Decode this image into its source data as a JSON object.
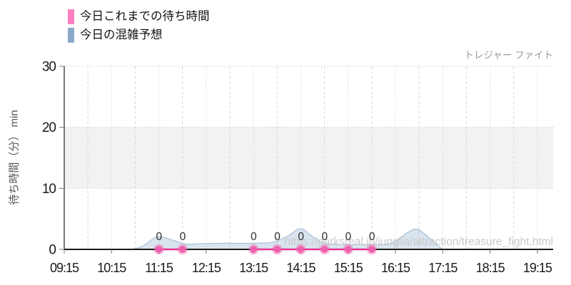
{
  "legend": {
    "items": [
      {
        "label": "今日これまでの待ち時間",
        "color": "#ff80c1"
      },
      {
        "label": "今日の混雑予想",
        "color": "#8aa9c9"
      }
    ]
  },
  "attraction_label": "トレジャー ファイト",
  "watermark": "https://parksreal.jp/junglia/attraction/treasure_fight.html",
  "chart_data": {
    "type": "line",
    "title": "",
    "xlabel": "",
    "ylabel": "待ち時間（分） min",
    "ylim": [
      0,
      30
    ],
    "y_ticks": [
      0,
      10,
      20,
      30
    ],
    "x_ticks": [
      "09:15",
      "10:15",
      "11:15",
      "12:15",
      "13:15",
      "14:15",
      "15:15",
      "16:15",
      "17:15",
      "18:15",
      "19:15"
    ],
    "x_range": [
      "09:15",
      "19:35"
    ],
    "grid": {
      "horizontal_dotted": true,
      "vertical_every_30min": true,
      "band_from": 10,
      "band_to": 20,
      "band_color": "#f2f2f2"
    },
    "legend_position": "top-left",
    "series": [
      {
        "name": "今日の混雑予想",
        "type": "area",
        "stroke_color": "#a9c2d9",
        "fill_color": "rgba(158,185,214,0.38)",
        "points": [
          [
            "09:15",
            0
          ],
          [
            "09:45",
            0
          ],
          [
            "10:15",
            0
          ],
          [
            "10:40",
            0
          ],
          [
            "10:55",
            0.6
          ],
          [
            "11:10",
            1.9
          ],
          [
            "11:20",
            2.0
          ],
          [
            "11:35",
            1.4
          ],
          [
            "11:50",
            0.85
          ],
          [
            "12:10",
            0.95
          ],
          [
            "12:40",
            1.0
          ],
          [
            "13:15",
            1.0
          ],
          [
            "13:40",
            1.2
          ],
          [
            "14:00",
            2.3
          ],
          [
            "14:15",
            3.4
          ],
          [
            "14:30",
            2.1
          ],
          [
            "14:45",
            1.0
          ],
          [
            "15:10",
            0.8
          ],
          [
            "15:50",
            0.8
          ],
          [
            "16:10",
            1.0
          ],
          [
            "16:30",
            2.7
          ],
          [
            "16:42",
            3.3
          ],
          [
            "16:55",
            2.2
          ],
          [
            "17:08",
            0.7
          ],
          [
            "17:18",
            0
          ],
          [
            "17:45",
            0
          ],
          [
            "18:30",
            0
          ],
          [
            "19:35",
            0
          ]
        ]
      },
      {
        "name": "今日これまでの待ち時間",
        "type": "scatter-line",
        "line_color": "#e5348f",
        "point_color": "#ee5fae",
        "point_halo_color": "rgba(238,95,174,0.45)",
        "segments": [
          [
            [
              "11:15",
              0
            ],
            [
              "11:45",
              0
            ]
          ],
          [
            [
              "13:15",
              0
            ],
            [
              "13:45",
              0
            ],
            [
              "14:15",
              0
            ],
            [
              "14:45",
              0
            ],
            [
              "15:15",
              0
            ],
            [
              "15:45",
              0
            ]
          ]
        ],
        "point_labels": [
          "0",
          "0",
          "0",
          "0",
          "0",
          "0",
          "0",
          "0"
        ]
      }
    ]
  },
  "style": {
    "axis_color": "#333333",
    "tick_text_color": "#1a1a1a",
    "gridline_color": "#cccccc",
    "vgrid_color": "#d8d8d8",
    "watermark_color": "#c9c9c9",
    "label_color": "#2a2a2a"
  }
}
